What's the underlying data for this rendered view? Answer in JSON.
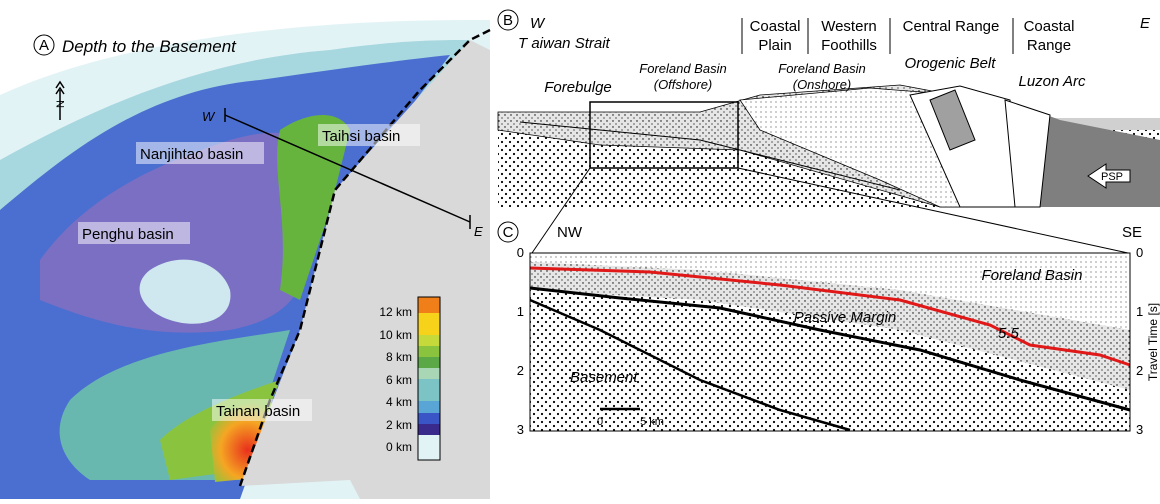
{
  "panel_a": {
    "letter": "A",
    "title": "Depth to the Basement",
    "north": "N",
    "profile_ends": [
      "W",
      "E"
    ],
    "basins": [
      "Taihsi basin",
      "Nanjihtao basin",
      "Penghu basin",
      "Tainan basin"
    ],
    "legend": [
      "12 km",
      "10 km",
      "8 km",
      "6 km",
      "4 km",
      "2 km",
      "0 km"
    ]
  },
  "panel_b": {
    "letter": "B",
    "west": "W",
    "east": "E",
    "strait": "T aiwan Strait",
    "provinces": [
      [
        "Coastal",
        "Plain"
      ],
      [
        "Western",
        "Foothills"
      ],
      [
        "Central Range"
      ],
      [
        "Coastal",
        "Range"
      ]
    ],
    "units": [
      "Forebulge",
      [
        "Foreland Basin",
        "(Offshore)"
      ],
      [
        "Foreland Basin",
        "(Onshore)"
      ],
      "Orogenic Belt",
      "Luzon Arc",
      "PSP"
    ]
  },
  "panel_c": {
    "letter": "C",
    "left_end": "NW",
    "right_end": "SE",
    "left_ticks": [
      "0",
      "1",
      "2",
      "3"
    ],
    "right_ticks": [
      "0",
      "1",
      "2",
      "3"
    ],
    "axis_title": "Travel Time [s]",
    "labels": [
      "Foreland Basin",
      "Passive Margin",
      "Basement",
      "5.5"
    ],
    "scale": [
      "0",
      "5 km"
    ]
  }
}
